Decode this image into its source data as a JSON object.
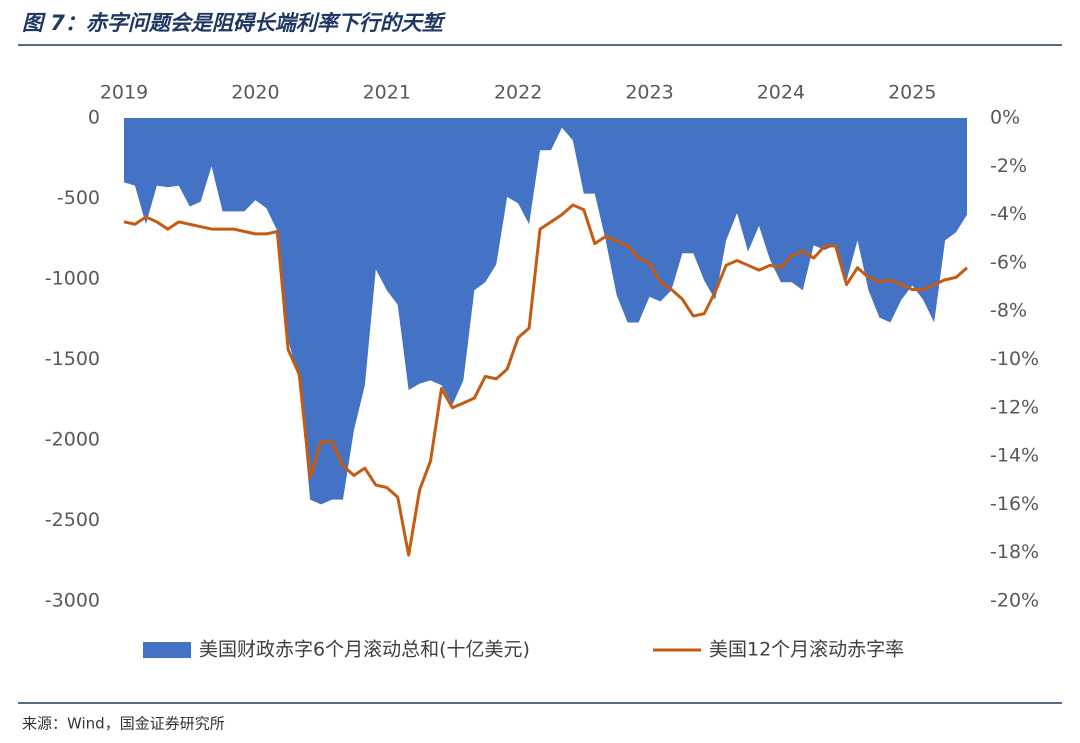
{
  "chart_data": {
    "type": "area_line_dual",
    "title": "图 7：赤字问题会是阻碍长端利率下行的天堑",
    "source": "来源：Wind，国金证券研究所",
    "categories": [
      "2019",
      null,
      null,
      null,
      null,
      null,
      null,
      null,
      null,
      null,
      null,
      null,
      "2020",
      null,
      null,
      null,
      null,
      null,
      null,
      null,
      null,
      null,
      null,
      null,
      "2021",
      null,
      null,
      null,
      null,
      null,
      null,
      null,
      null,
      null,
      null,
      null,
      "2022",
      null,
      null,
      null,
      null,
      null,
      null,
      null,
      null,
      null,
      null,
      null,
      "2023",
      null,
      null,
      null,
      null,
      null,
      null,
      null,
      null,
      null,
      null,
      null,
      "2024",
      null,
      null,
      null,
      null,
      null,
      null,
      null,
      null,
      null,
      null,
      null,
      "2025",
      null,
      null,
      null,
      null,
      null
    ],
    "ylim": [
      -3000,
      0
    ],
    "yticks": [
      0,
      -500,
      -1000,
      -1500,
      -2000,
      -2500,
      -3000
    ],
    "y2lim": [
      -20,
      0
    ],
    "y2ticks": [
      {
        "value": 0,
        "label": "0%"
      },
      {
        "value": -2,
        "label": "-2%"
      },
      {
        "value": -4,
        "label": "-4%"
      },
      {
        "value": -6,
        "label": "-6%"
      },
      {
        "value": -8,
        "label": "-8%"
      },
      {
        "value": -10,
        "label": "-10%"
      },
      {
        "value": -12,
        "label": "-12%"
      },
      {
        "value": -14,
        "label": "-14%"
      },
      {
        "value": -16,
        "label": "-16%"
      },
      {
        "value": -18,
        "label": "-18%"
      },
      {
        "value": -20,
        "label": "-20%"
      }
    ],
    "series": [
      {
        "name": "美国财政赤字6个月滚动总和(十亿美元)",
        "color": "#4472c4",
        "kind": "area",
        "values": [
          -400,
          -420,
          -660,
          -420,
          -430,
          -420,
          -550,
          -520,
          -300,
          -580,
          -580,
          -580,
          -510,
          -560,
          -700,
          -1380,
          -1630,
          -2370,
          -2400,
          -2370,
          -2370,
          -1940,
          -1660,
          -940,
          -1070,
          -1160,
          -1690,
          -1650,
          -1630,
          -1660,
          -1780,
          -1630,
          -1070,
          -1020,
          -910,
          -490,
          -530,
          -660,
          -200,
          -200,
          -60,
          -140,
          -470,
          -470,
          -760,
          -1100,
          -1270,
          -1270,
          -1110,
          -1140,
          -1070,
          -840,
          -840,
          -1010,
          -1130,
          -760,
          -590,
          -830,
          -670,
          -880,
          -1020,
          -1020,
          -1070,
          -790,
          -820,
          -790,
          -1010,
          -760,
          -1070,
          -1240,
          -1270,
          -1130,
          -1040,
          -1130,
          -1270,
          -760,
          -710,
          -600
        ]
      },
      {
        "name": "美国12个月滚动赤字率",
        "color": "#c55a11",
        "kind": "line",
        "axis": "y2",
        "values": [
          -4.3,
          -4.4,
          -4.1,
          -4.3,
          -4.6,
          -4.3,
          -4.4,
          -4.5,
          -4.6,
          -4.6,
          -4.6,
          -4.7,
          -4.8,
          -4.8,
          -4.7,
          -9.6,
          -10.6,
          -14.9,
          -13.4,
          -13.4,
          -14.4,
          -14.8,
          -14.5,
          -15.2,
          -15.3,
          -15.7,
          -18.1,
          -15.4,
          -14.2,
          -11.2,
          -12.0,
          -11.8,
          -11.6,
          -10.7,
          -10.8,
          -10.4,
          -9.1,
          -8.7,
          -4.6,
          -4.3,
          -4.0,
          -3.6,
          -3.8,
          -5.2,
          -4.9,
          -5.1,
          -5.3,
          -5.8,
          -6.0,
          -6.8,
          -7.1,
          -7.5,
          -8.2,
          -8.1,
          -7.2,
          -6.1,
          -5.9,
          -6.1,
          -6.3,
          -6.1,
          -6.2,
          -5.7,
          -5.5,
          -5.8,
          -5.3,
          -5.3,
          -6.9,
          -6.2,
          -6.6,
          -6.8,
          -6.7,
          -6.9,
          -7.1,
          -7.1,
          -6.9,
          -6.7,
          -6.6,
          -6.2
        ]
      }
    ]
  }
}
